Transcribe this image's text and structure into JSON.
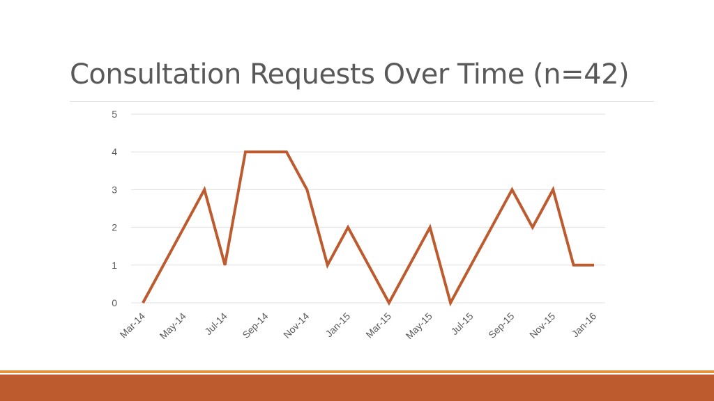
{
  "title": "Consultation Requests Over Time (n=42)",
  "colors": {
    "line": "#bd5a2e",
    "footer_band": "#bd5a2e",
    "footer_thin": "#e8913b",
    "grid": "#e0e0e0",
    "text": "#595959"
  },
  "chart_data": {
    "type": "line",
    "title": "",
    "xlabel": "",
    "ylabel": "",
    "ylim": [
      0,
      5
    ],
    "yticks": [
      0,
      1,
      2,
      3,
      4,
      5
    ],
    "grid": true,
    "legend": "none",
    "x": [
      "Mar-14",
      "Apr-14",
      "May-14",
      "Jun-14",
      "Jul-14",
      "Aug-14",
      "Sep-14",
      "Oct-14",
      "Nov-14",
      "Dec-14",
      "Jan-15",
      "Feb-15",
      "Mar-15",
      "Apr-15",
      "May-15",
      "Jun-15",
      "Jul-15",
      "Aug-15",
      "Sep-15",
      "Oct-15",
      "Nov-15",
      "Dec-15",
      "Jan-16"
    ],
    "x_tick_labels": [
      "Mar-14",
      "May-14",
      "Jul-14",
      "Sep-14",
      "Nov-14",
      "Jan-15",
      "Mar-15",
      "May-15",
      "Jul-15",
      "Sep-15",
      "Nov-15",
      "Jan-16"
    ],
    "series": [
      {
        "values": [
          0,
          1,
          2,
          3,
          1,
          4,
          4,
          4,
          3,
          1,
          2,
          1,
          0,
          1,
          2,
          0,
          1,
          2,
          3,
          2,
          3,
          1,
          1
        ]
      }
    ]
  }
}
